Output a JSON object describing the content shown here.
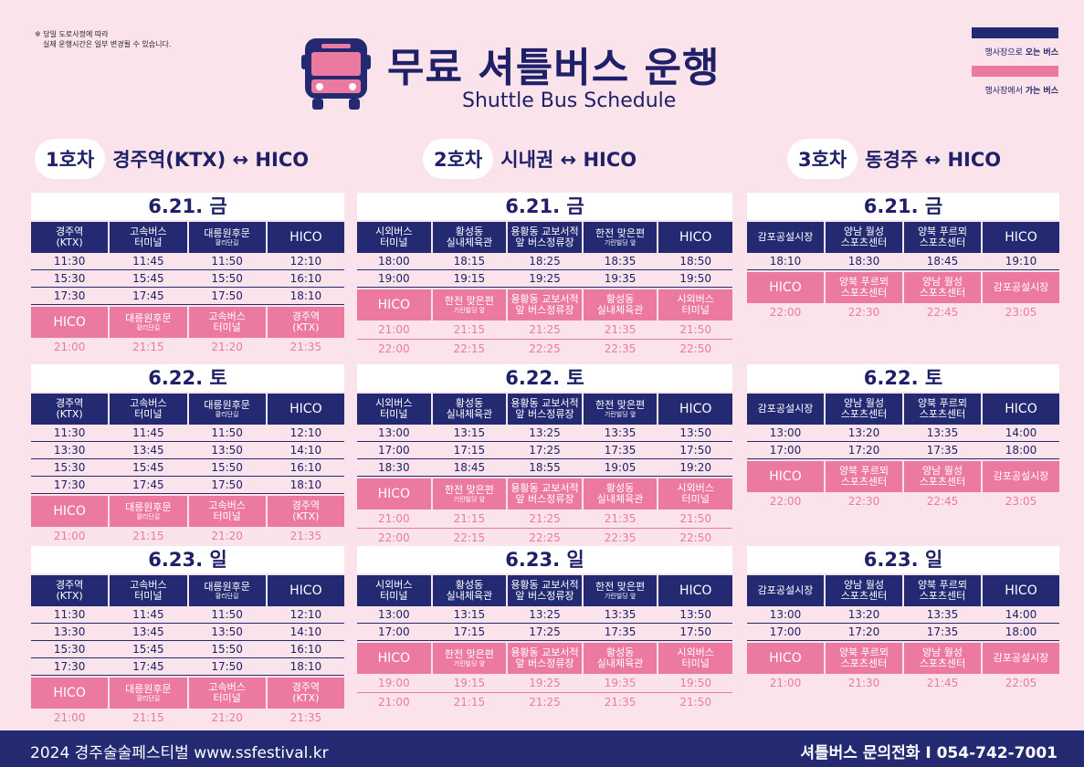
{
  "notice": {
    "line1": "※ 당일 도로사정에 따라",
    "line2": "실제 운행시간은 일부 변경될 수 있습니다."
  },
  "title": "무료 셔틀버스 운행",
  "subtitle": "Shuttle Bus Schedule",
  "legend": {
    "to_venue_pre": "행사장으로 ",
    "to_venue_bold": "오는 버스",
    "from_venue_pre": "행사장에서 ",
    "from_venue_bold": "가는 버스",
    "to_color": "#232a72",
    "from_color": "#ec7aa0"
  },
  "routes": [
    {
      "no": "1호차",
      "name": "경주역(KTX) ↔ HICO",
      "days": [
        {
          "date": "6.21. 금",
          "out_stops": [
            {
              "t": "경주역",
              "s": "(KTX)"
            },
            {
              "t": "고속버스",
              "s2": "터미널"
            },
            {
              "t": "대릉원후문",
              "sm": "황리단길"
            },
            {
              "t": "HICO",
              "big": true
            }
          ],
          "out_times": [
            [
              "11:30",
              "11:45",
              "11:50",
              "12:10"
            ],
            [
              "15:30",
              "15:45",
              "15:50",
              "16:10"
            ],
            [
              "17:30",
              "17:45",
              "17:50",
              "18:10"
            ]
          ],
          "ret_stops": [
            {
              "t": "HICO",
              "big": true
            },
            {
              "t": "대릉원후문",
              "sm": "황리단길"
            },
            {
              "t": "고속버스",
              "s2": "터미널"
            },
            {
              "t": "경주역",
              "s": "(KTX)"
            }
          ],
          "ret_times": [
            [
              "21:00",
              "21:15",
              "21:20",
              "21:35"
            ]
          ]
        },
        {
          "date": "6.22. 토",
          "out_stops": [
            {
              "t": "경주역",
              "s": "(KTX)"
            },
            {
              "t": "고속버스",
              "s2": "터미널"
            },
            {
              "t": "대릉원후문",
              "sm": "황리단길"
            },
            {
              "t": "HICO",
              "big": true
            }
          ],
          "out_times": [
            [
              "11:30",
              "11:45",
              "11:50",
              "12:10"
            ],
            [
              "13:30",
              "13:45",
              "13:50",
              "14:10"
            ],
            [
              "15:30",
              "15:45",
              "15:50",
              "16:10"
            ],
            [
              "17:30",
              "17:45",
              "17:50",
              "18:10"
            ]
          ],
          "ret_stops": [
            {
              "t": "HICO",
              "big": true
            },
            {
              "t": "대릉원후문",
              "sm": "황리단길"
            },
            {
              "t": "고속버스",
              "s2": "터미널"
            },
            {
              "t": "경주역",
              "s": "(KTX)"
            }
          ],
          "ret_times": [
            [
              "21:00",
              "21:15",
              "21:20",
              "21:35"
            ]
          ]
        },
        {
          "date": "6.23. 일",
          "out_stops": [
            {
              "t": "경주역",
              "s": "(KTX)"
            },
            {
              "t": "고속버스",
              "s2": "터미널"
            },
            {
              "t": "대릉원후문",
              "sm": "황리단길"
            },
            {
              "t": "HICO",
              "big": true
            }
          ],
          "out_times": [
            [
              "11:30",
              "11:45",
              "11:50",
              "12:10"
            ],
            [
              "13:30",
              "13:45",
              "13:50",
              "14:10"
            ],
            [
              "15:30",
              "15:45",
              "15:50",
              "16:10"
            ],
            [
              "17:30",
              "17:45",
              "17:50",
              "18:10"
            ]
          ],
          "ret_stops": [
            {
              "t": "HICO",
              "big": true
            },
            {
              "t": "대릉원후문",
              "sm": "황리단길"
            },
            {
              "t": "고속버스",
              "s2": "터미널"
            },
            {
              "t": "경주역",
              "s": "(KTX)"
            }
          ],
          "ret_times": [
            [
              "21:00",
              "21:15",
              "21:20",
              "21:35"
            ]
          ]
        }
      ]
    },
    {
      "no": "2호차",
      "name": "시내권 ↔ HICO",
      "days": [
        {
          "date": "6.21. 금",
          "out_stops": [
            {
              "t": "시외버스",
              "s2": "터미널"
            },
            {
              "t": "황성동",
              "s2": "실내체육관"
            },
            {
              "t": "용황동 교보서적",
              "s2": "앞 버스정류장"
            },
            {
              "t": "한전 맞은편",
              "sm": "기린빌딩 앞"
            },
            {
              "t": "HICO",
              "big": true
            }
          ],
          "out_times": [
            [
              "18:00",
              "18:15",
              "18:25",
              "18:35",
              "18:50"
            ],
            [
              "19:00",
              "19:15",
              "19:25",
              "19:35",
              "19:50"
            ]
          ],
          "ret_stops": [
            {
              "t": "HICO",
              "big": true
            },
            {
              "t": "한전 맞은편",
              "sm": "기린빌딩 앞"
            },
            {
              "t": "용황동 교보서적",
              "s2": "앞 버스정류장"
            },
            {
              "t": "황성동",
              "s2": "실내체육관"
            },
            {
              "t": "시외버스",
              "s2": "터미널"
            }
          ],
          "ret_times": [
            [
              "21:00",
              "21:15",
              "21:25",
              "21:35",
              "21:50"
            ],
            [
              "22:00",
              "22:15",
              "22:25",
              "22:35",
              "22:50"
            ]
          ]
        },
        {
          "date": "6.22. 토",
          "out_stops": [
            {
              "t": "시외버스",
              "s2": "터미널"
            },
            {
              "t": "황성동",
              "s2": "실내체육관"
            },
            {
              "t": "용황동 교보서적",
              "s2": "앞 버스정류장"
            },
            {
              "t": "한전 맞은편",
              "sm": "기린빌딩 앞"
            },
            {
              "t": "HICO",
              "big": true
            }
          ],
          "out_times": [
            [
              "13:00",
              "13:15",
              "13:25",
              "13:35",
              "13:50"
            ],
            [
              "17:00",
              "17:15",
              "17:25",
              "17:35",
              "17:50"
            ],
            [
              "18:30",
              "18:45",
              "18:55",
              "19:05",
              "19:20"
            ]
          ],
          "ret_stops": [
            {
              "t": "HICO",
              "big": true
            },
            {
              "t": "한전 맞은편",
              "sm": "기린빌딩 앞"
            },
            {
              "t": "용황동 교보서적",
              "s2": "앞 버스정류장"
            },
            {
              "t": "황성동",
              "s2": "실내체육관"
            },
            {
              "t": "시외버스",
              "s2": "터미널"
            }
          ],
          "ret_times": [
            [
              "21:00",
              "21:15",
              "21:25",
              "21:35",
              "21:50"
            ],
            [
              "22:00",
              "22:15",
              "22:25",
              "22:35",
              "22:50"
            ]
          ]
        },
        {
          "date": "6.23. 일",
          "out_stops": [
            {
              "t": "시외버스",
              "s2": "터미널"
            },
            {
              "t": "황성동",
              "s2": "실내체육관"
            },
            {
              "t": "용황동 교보서적",
              "s2": "앞 버스정류장"
            },
            {
              "t": "한전 맞은편",
              "sm": "기린빌딩 앞"
            },
            {
              "t": "HICO",
              "big": true
            }
          ],
          "out_times": [
            [
              "13:00",
              "13:15",
              "13:25",
              "13:35",
              "13:50"
            ],
            [
              "17:00",
              "17:15",
              "17:25",
              "17:35",
              "17:50"
            ]
          ],
          "ret_stops": [
            {
              "t": "HICO",
              "big": true
            },
            {
              "t": "한전 맞은편",
              "sm": "기린빌딩 앞"
            },
            {
              "t": "용황동 교보서적",
              "s2": "앞 버스정류장"
            },
            {
              "t": "황성동",
              "s2": "실내체육관"
            },
            {
              "t": "시외버스",
              "s2": "터미널"
            }
          ],
          "ret_times": [
            [
              "19:00",
              "19:15",
              "19:25",
              "19:35",
              "19:50"
            ],
            [
              "21:00",
              "21:15",
              "21:25",
              "21:35",
              "21:50"
            ]
          ]
        }
      ]
    },
    {
      "no": "3호차",
      "name": "동경주 ↔ HICO",
      "days": [
        {
          "date": "6.21. 금",
          "out_stops": [
            {
              "t": "감포공설시장"
            },
            {
              "t": "양남 월성",
              "s2": "스포츠센터"
            },
            {
              "t": "양북 푸르뫼",
              "s2": "스포츠센터"
            },
            {
              "t": "HICO",
              "big": true
            }
          ],
          "out_times": [
            [
              "18:10",
              "18:30",
              "18:45",
              "19:10"
            ]
          ],
          "ret_stops": [
            {
              "t": "HICO",
              "big": true
            },
            {
              "t": "양북 푸르뫼",
              "s2": "스포츠센터"
            },
            {
              "t": "양남 월성",
              "s2": "스포츠센터"
            },
            {
              "t": "감포공설시장"
            }
          ],
          "ret_times": [
            [
              "22:00",
              "22:30",
              "22:45",
              "23:05"
            ]
          ]
        },
        {
          "date": "6.22. 토",
          "out_stops": [
            {
              "t": "감포공설시장"
            },
            {
              "t": "양남 월성",
              "s2": "스포츠센터"
            },
            {
              "t": "양북 푸르뫼",
              "s2": "스포츠센터"
            },
            {
              "t": "HICO",
              "big": true
            }
          ],
          "out_times": [
            [
              "13:00",
              "13:20",
              "13:35",
              "14:00"
            ],
            [
              "17:00",
              "17:20",
              "17:35",
              "18:00"
            ]
          ],
          "ret_stops": [
            {
              "t": "HICO",
              "big": true
            },
            {
              "t": "양북 푸르뫼",
              "s2": "스포츠센터"
            },
            {
              "t": "양남 월성",
              "s2": "스포츠센터"
            },
            {
              "t": "감포공설시장"
            }
          ],
          "ret_times": [
            [
              "22:00",
              "22:30",
              "22:45",
              "23:05"
            ]
          ]
        },
        {
          "date": "6.23. 일",
          "out_stops": [
            {
              "t": "감포공설시장"
            },
            {
              "t": "양남 월성",
              "s2": "스포츠센터"
            },
            {
              "t": "양북 푸르뫼",
              "s2": "스포츠센터"
            },
            {
              "t": "HICO",
              "big": true
            }
          ],
          "out_times": [
            [
              "13:00",
              "13:20",
              "13:35",
              "14:00"
            ],
            [
              "17:00",
              "17:20",
              "17:35",
              "18:00"
            ]
          ],
          "ret_stops": [
            {
              "t": "HICO",
              "big": true
            },
            {
              "t": "양북 푸르뫼",
              "s2": "스포츠센터"
            },
            {
              "t": "양남 월성",
              "s2": "스포츠센터"
            },
            {
              "t": "감포공설시장"
            }
          ],
          "ret_times": [
            [
              "21:00",
              "21:30",
              "21:45",
              "22:05"
            ]
          ]
        }
      ]
    }
  ],
  "footer": {
    "left": "2024 경주술술페스티벌  www.ssfestival.kr",
    "right": "셔틀버스 문의전화   I   054-742-7001"
  }
}
